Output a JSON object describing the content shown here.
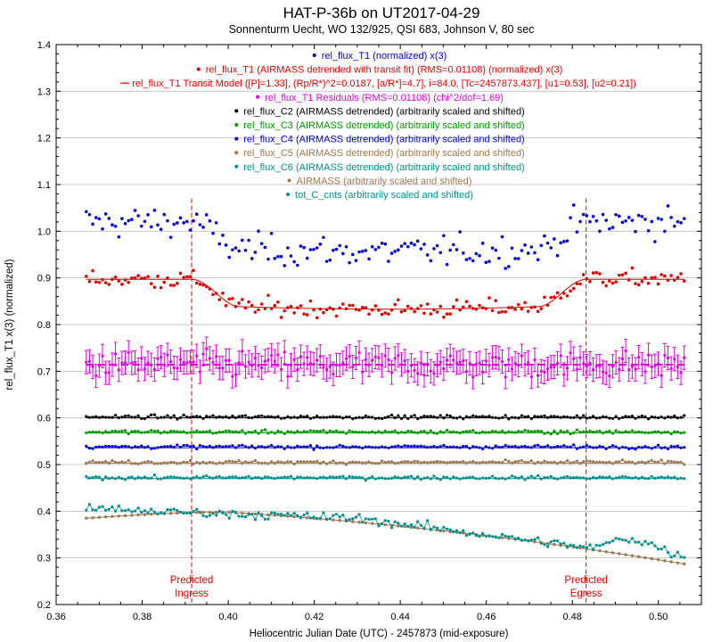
{
  "chart_data": {
    "type": "scatter",
    "title": "HAT-P-36b on UT2017-04-29",
    "subtitle": "Sonnenturm Uecht, WO 132/925, QSI 683, Johnson V, 80 sec",
    "xlabel": "Heliocentric Julian Date (UTC) - 2457873 (mid-exposure)",
    "ylabel": "rel_flux_T1 x(3) (normalized)",
    "xlim": [
      0.36,
      0.51
    ],
    "ylim": [
      0.2,
      1.4
    ],
    "xticks": [
      "0.36",
      "0.38",
      "0.40",
      "0.42",
      "0.44",
      "0.46",
      "0.48",
      "0.50"
    ],
    "yticks": [
      "0.2",
      "0.3",
      "0.4",
      "0.5",
      "0.6",
      "0.7",
      "0.8",
      "0.9",
      "1.0",
      "1.1",
      "1.2",
      "1.3",
      "1.4"
    ],
    "grid": "horizontal",
    "legend_position": "top-center",
    "transit": {
      "ingress": 0.3915,
      "egress": 0.4832,
      "depth": 0.064,
      "baseline": 0.897,
      "residual_level": 0.714
    },
    "annotations": [
      {
        "text": "Predicted",
        "text2": "Ingress",
        "x": 0.3915
      },
      {
        "text": "Predicted",
        "text2": "Egress",
        "x": 0.4832
      }
    ],
    "x_range_of_data": [
      0.367,
      0.506
    ],
    "series": [
      {
        "name": "rel_flux_T1 (normalized) x(3)",
        "color": "#0000dd",
        "kind": "points",
        "model": "t1",
        "level": 1.02,
        "noise": 0.035
      },
      {
        "name": "rel_flux_T1 (AIRMASS detrended with transit fit) (RMS=0.01108) (normalized) x(3)",
        "color": "#e00000",
        "kind": "points",
        "model": "t1",
        "level": 0.897,
        "noise": 0.02
      },
      {
        "name": "rel_flux_T1 Transit Model ([P]=1.33], (Rp/R*)^2=0.0187, [a/R*]=4.7], i=84.0, [Tc=2457873.437], [u1=0.53], [u2=0.21])",
        "color": "#e00000",
        "kind": "line",
        "model": "transit",
        "level": 0.897
      },
      {
        "name": "rel_flux_T1 Residuals (RMS=0.01108) (chi^2/dof=1.69)",
        "color": "#e000e0",
        "kind": "errorbars",
        "level": 0.714,
        "noise": 0.03,
        "err": 0.025
      },
      {
        "name": "rel_flux_C2 (AIRMASS detrended) (arbitrarily scaled and shifted)",
        "color": "#000000",
        "kind": "points+line",
        "level": 0.602,
        "noise": 0.004
      },
      {
        "name": "rel_flux_C3 (AIRMASS detrended) (arbitrarily scaled and shifted)",
        "color": "#009900",
        "kind": "points+line",
        "level": 0.57,
        "noise": 0.004
      },
      {
        "name": "rel_flux_C4 (AIRMASS detrended) (arbitrarily scaled and shifted)",
        "color": "#0000dd",
        "kind": "points+line",
        "level": 0.538,
        "noise": 0.004
      },
      {
        "name": "rel_flux_C5 (AIRMASS detrended) (arbitrarily scaled and shifted)",
        "color": "#a07850",
        "kind": "points+line",
        "level": 0.505,
        "noise": 0.004
      },
      {
        "name": "rel_flux_C6 (AIRMASS detrended) (arbitrarily scaled and shifted)",
        "color": "#008f8f",
        "kind": "points+line",
        "level": 0.472,
        "noise": 0.004
      },
      {
        "name": "AIRMASS (arbitrarily scaled and shifted)",
        "color": "#a07850",
        "kind": "airmass",
        "start": 0.385,
        "peak": 0.398,
        "peak_x": 0.4,
        "end": 0.287
      },
      {
        "name": "tot_C_cnts (arbitrarily scaled and shifted)",
        "color": "#008f8f",
        "kind": "counts",
        "start": 0.405,
        "mid": 0.385,
        "end": 0.32,
        "noise": 0.01
      }
    ]
  }
}
